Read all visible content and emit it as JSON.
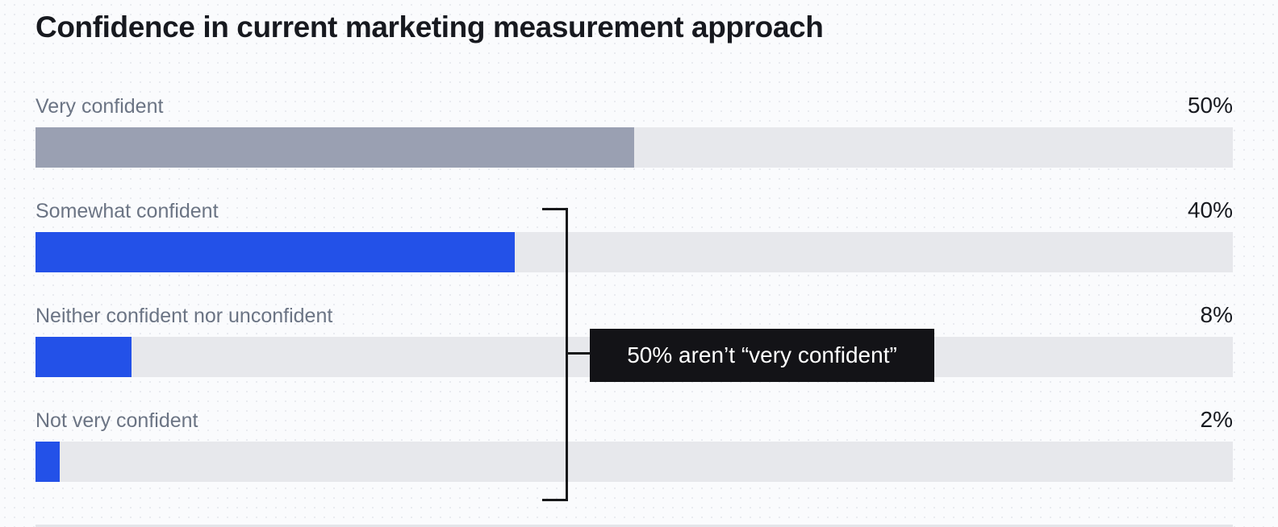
{
  "title": "Confidence in current marketing measurement approach",
  "colors": {
    "background": "#fafbfd",
    "title_text": "#17191f",
    "label_text": "#6b7484",
    "value_text": "#17191f",
    "track": "#e7e8ec",
    "bar_gray": "#9aa0b2",
    "bar_blue": "#2351e8",
    "bracket_line": "#17181a",
    "annotation_bg": "#131317",
    "annotation_fg": "#ffffff"
  },
  "chart_data": {
    "type": "bar",
    "orientation": "horizontal",
    "title": "Confidence in current marketing measurement approach",
    "categories": [
      "Very confident",
      "Somewhat confident",
      "Neither confident nor unconfident",
      "Not very confident"
    ],
    "values": [
      50,
      40,
      8,
      2
    ],
    "value_labels": [
      "50%",
      "40%",
      "8%",
      "2%"
    ],
    "xlim": [
      0,
      100
    ],
    "grid": false,
    "legend": false,
    "bar_colors": [
      "#9aa0b2",
      "#2351e8",
      "#2351e8",
      "#2351e8"
    ],
    "annotation": {
      "text": "50% aren’t “very confident”",
      "groups_categories": [
        "Somewhat confident",
        "Neither confident nor unconfident",
        "Not very confident"
      ]
    }
  },
  "rows": [
    {
      "label": "Very confident",
      "value": 50,
      "value_label": "50%",
      "color": "#9aa0b2"
    },
    {
      "label": "Somewhat confident",
      "value": 40,
      "value_label": "40%",
      "color": "#2351e8"
    },
    {
      "label": "Neither confident nor unconfident",
      "value": 8,
      "value_label": "8%",
      "color": "#2351e8"
    },
    {
      "label": "Not very confident",
      "value": 2,
      "value_label": "2%",
      "color": "#2351e8"
    }
  ],
  "annotation": {
    "text": "50% aren’t “very confident”"
  }
}
